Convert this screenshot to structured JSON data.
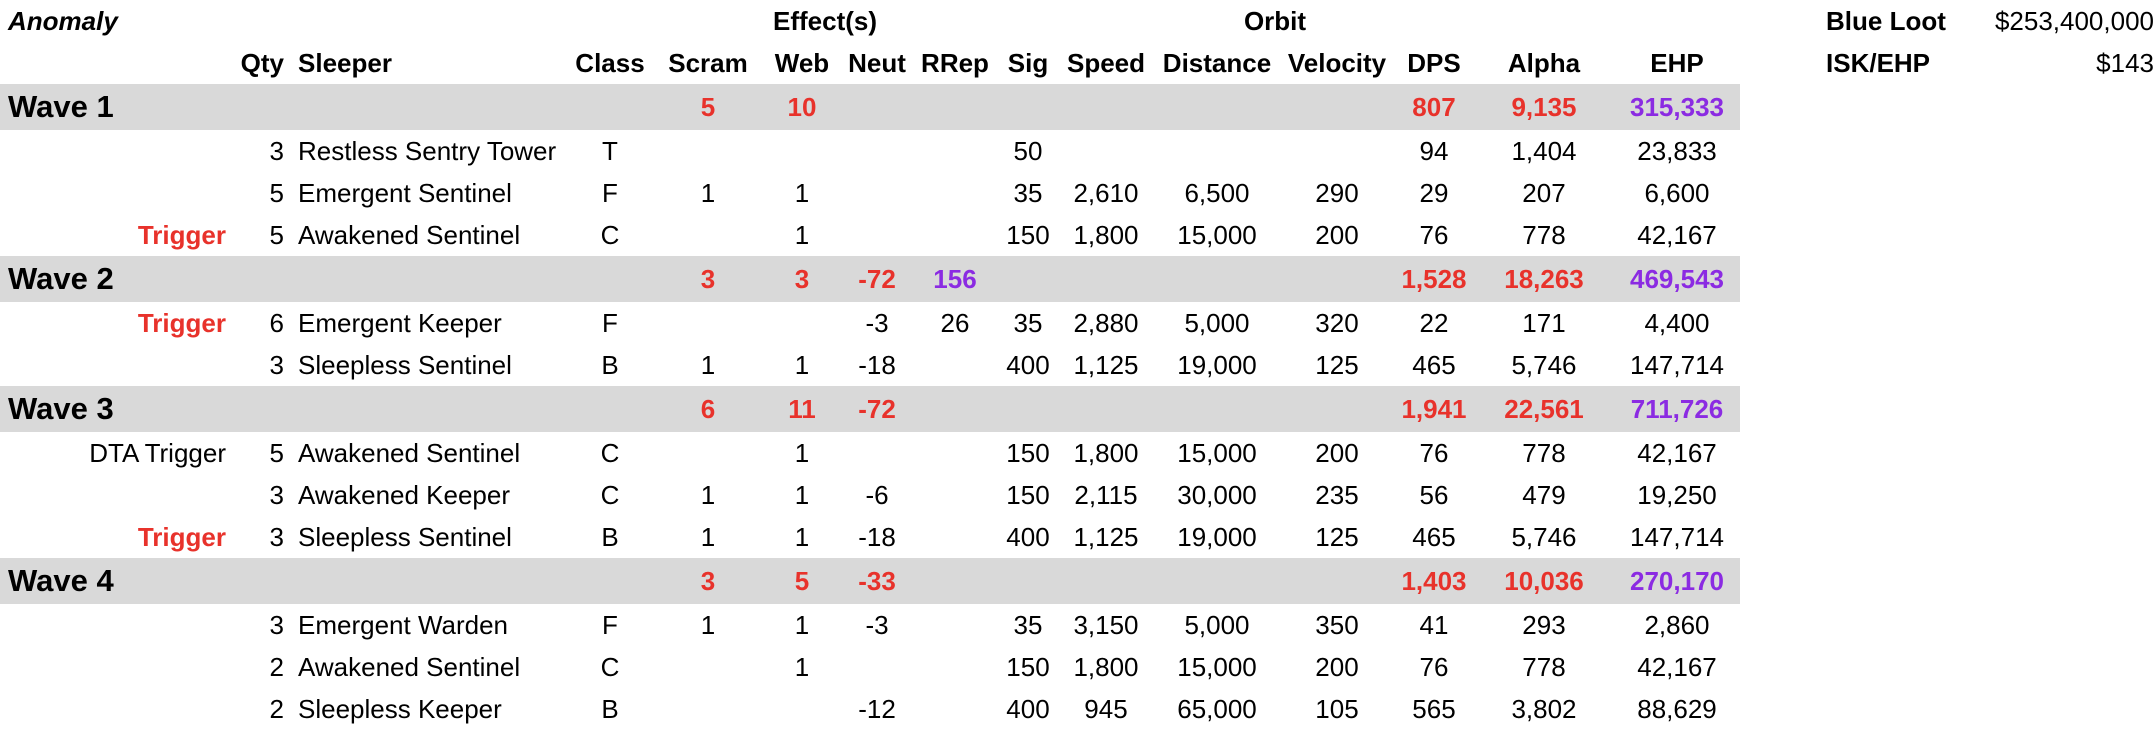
{
  "header": {
    "anomaly_label": "Anomaly",
    "effects_label": "Effect(s)",
    "orbit_label": "Orbit",
    "columns": {
      "qty": "Qty",
      "sleeper": "Sleeper",
      "class": "Class",
      "scram": "Scram",
      "web": "Web",
      "neut": "Neut",
      "rrep": "RRep",
      "sig": "Sig",
      "speed": "Speed",
      "distance": "Distance",
      "velocity": "Velocity",
      "dps": "DPS",
      "alpha": "Alpha",
      "ehp": "EHP"
    }
  },
  "side": {
    "blue_loot_label": "Blue Loot",
    "blue_loot_value": "$253,400,000",
    "isk_ehp_label": "ISK/EHP",
    "isk_ehp_value": "$143"
  },
  "waves": [
    {
      "title": "Wave 1",
      "totals": {
        "scram": "5",
        "web": "10",
        "neut": "",
        "rrep": "",
        "dps": "807",
        "alpha": "9,135",
        "ehp": "315,333"
      },
      "rows": [
        {
          "trigger": "",
          "qty": "3",
          "sleeper": "Restless Sentry Tower",
          "class": "T",
          "scram": "",
          "web": "",
          "neut": "",
          "rrep": "",
          "sig": "50",
          "speed": "",
          "distance": "",
          "velocity": "",
          "dps": "94",
          "alpha": "1,404",
          "ehp": "23,833"
        },
        {
          "trigger": "",
          "qty": "5",
          "sleeper": "Emergent Sentinel",
          "class": "F",
          "scram": "1",
          "web": "1",
          "neut": "",
          "rrep": "",
          "sig": "35",
          "speed": "2,610",
          "distance": "6,500",
          "velocity": "290",
          "dps": "29",
          "alpha": "207",
          "ehp": "6,600"
        },
        {
          "trigger": "Trigger",
          "qty": "5",
          "sleeper": "Awakened Sentinel",
          "class": "C",
          "scram": "",
          "web": "1",
          "neut": "",
          "rrep": "",
          "sig": "150",
          "speed": "1,800",
          "distance": "15,000",
          "velocity": "200",
          "dps": "76",
          "alpha": "778",
          "ehp": "42,167"
        }
      ]
    },
    {
      "title": "Wave 2",
      "totals": {
        "scram": "3",
        "web": "3",
        "neut": "-72",
        "rrep": "156",
        "dps": "1,528",
        "alpha": "18,263",
        "ehp": "469,543"
      },
      "rows": [
        {
          "trigger": "Trigger",
          "qty": "6",
          "sleeper": "Emergent Keeper",
          "class": "F",
          "scram": "",
          "web": "",
          "neut": "-3",
          "rrep": "26",
          "sig": "35",
          "speed": "2,880",
          "distance": "5,000",
          "velocity": "320",
          "dps": "22",
          "alpha": "171",
          "ehp": "4,400"
        },
        {
          "trigger": "",
          "qty": "3",
          "sleeper": "Sleepless Sentinel",
          "class": "B",
          "scram": "1",
          "web": "1",
          "neut": "-18",
          "rrep": "",
          "sig": "400",
          "speed": "1,125",
          "distance": "19,000",
          "velocity": "125",
          "dps": "465",
          "alpha": "5,746",
          "ehp": "147,714"
        }
      ]
    },
    {
      "title": "Wave 3",
      "totals": {
        "scram": "6",
        "web": "11",
        "neut": "-72",
        "rrep": "",
        "dps": "1,941",
        "alpha": "22,561",
        "ehp": "711,726"
      },
      "rows": [
        {
          "trigger": "DTA Trigger",
          "trigger_style": "plain",
          "qty": "5",
          "sleeper": "Awakened Sentinel",
          "class": "C",
          "scram": "",
          "web": "1",
          "neut": "",
          "rrep": "",
          "sig": "150",
          "speed": "1,800",
          "distance": "15,000",
          "velocity": "200",
          "dps": "76",
          "alpha": "778",
          "ehp": "42,167"
        },
        {
          "trigger": "",
          "qty": "3",
          "sleeper": "Awakened Keeper",
          "class": "C",
          "scram": "1",
          "web": "1",
          "neut": "-6",
          "rrep": "",
          "sig": "150",
          "speed": "2,115",
          "distance": "30,000",
          "velocity": "235",
          "dps": "56",
          "alpha": "479",
          "ehp": "19,250"
        },
        {
          "trigger": "Trigger",
          "qty": "3",
          "sleeper": "Sleepless Sentinel",
          "class": "B",
          "scram": "1",
          "web": "1",
          "neut": "-18",
          "rrep": "",
          "sig": "400",
          "speed": "1,125",
          "distance": "19,000",
          "velocity": "125",
          "dps": "465",
          "alpha": "5,746",
          "ehp": "147,714"
        }
      ]
    },
    {
      "title": "Wave 4",
      "totals": {
        "scram": "3",
        "web": "5",
        "neut": "-33",
        "rrep": "",
        "dps": "1,403",
        "alpha": "10,036",
        "ehp": "270,170"
      },
      "rows": [
        {
          "trigger": "",
          "qty": "3",
          "sleeper": "Emergent Warden",
          "class": "F",
          "scram": "1",
          "web": "1",
          "neut": "-3",
          "rrep": "",
          "sig": "35",
          "speed": "3,150",
          "distance": "5,000",
          "velocity": "350",
          "dps": "41",
          "alpha": "293",
          "ehp": "2,860"
        },
        {
          "trigger": "",
          "qty": "2",
          "sleeper": "Awakened Sentinel",
          "class": "C",
          "scram": "",
          "web": "1",
          "neut": "",
          "rrep": "",
          "sig": "150",
          "speed": "1,800",
          "distance": "15,000",
          "velocity": "200",
          "dps": "76",
          "alpha": "778",
          "ehp": "42,167"
        },
        {
          "trigger": "",
          "qty": "2",
          "sleeper": "Sleepless Keeper",
          "class": "B",
          "scram": "",
          "web": "",
          "neut": "-12",
          "rrep": "",
          "sig": "400",
          "speed": "945",
          "distance": "65,000",
          "velocity": "105",
          "dps": "565",
          "alpha": "3,802",
          "ehp": "88,629"
        }
      ]
    }
  ],
  "colors": {
    "accent_red": "#e8322b",
    "ehp_purple": "#8b2be2",
    "wave_band": "#d9d9d9"
  }
}
